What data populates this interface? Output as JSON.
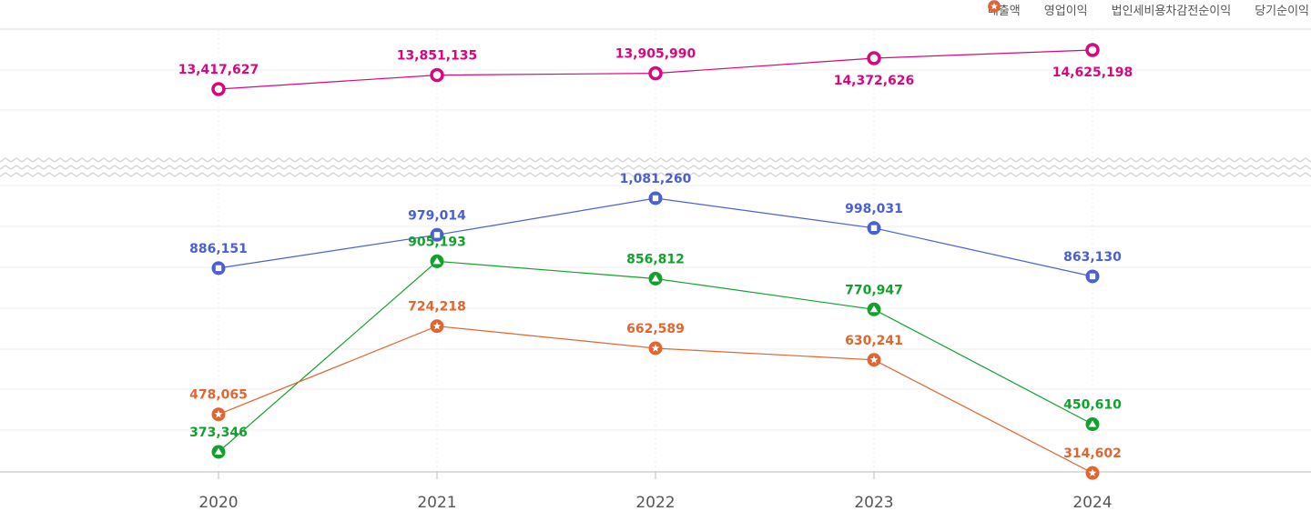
{
  "chart_data": {
    "type": "line",
    "title": "",
    "xlabel": "",
    "ylabel": "",
    "categories": [
      "2020",
      "2021",
      "2022",
      "2023",
      "2024"
    ],
    "axis_break": true,
    "legend_position": "top-right",
    "grid": true,
    "series": [
      {
        "name": "매출액",
        "marker": "circle",
        "color": "#d6087f",
        "values": [
          13417627,
          13851135,
          13905990,
          14372626,
          14625198
        ],
        "labels": [
          "13,417,627",
          "13,851,135",
          "13,905,990",
          "14,372,626",
          "14,625,198"
        ],
        "label_pos": [
          "above",
          "above",
          "above",
          "below",
          "below"
        ]
      },
      {
        "name": "영업이익",
        "marker": "square",
        "color": "#4a5fd6",
        "values": [
          886151,
          979014,
          1081260,
          998031,
          863130
        ],
        "labels": [
          "886,151",
          "979,014",
          "1,081,260",
          "998,031",
          "863,130"
        ],
        "label_pos": [
          "above",
          "above",
          "above",
          "above",
          "above"
        ]
      },
      {
        "name": "법인세비용차감전순이익",
        "marker": "triangle",
        "color": "#12a12d",
        "values": [
          373346,
          905193,
          856812,
          770947,
          450610
        ],
        "labels": [
          "373,346",
          "905,193",
          "856,812",
          "770,947",
          "450,610"
        ],
        "label_pos": [
          "above",
          "above",
          "above",
          "above",
          "above"
        ]
      },
      {
        "name": "당기순이익",
        "marker": "star",
        "color": "#e0652f",
        "values": [
          478065,
          724218,
          662589,
          630241,
          314602
        ],
        "labels": [
          "478,065",
          "724,218",
          "662,589",
          "630,241",
          "314,602"
        ],
        "label_pos": [
          "above",
          "above",
          "above",
          "above",
          "above"
        ]
      }
    ]
  }
}
